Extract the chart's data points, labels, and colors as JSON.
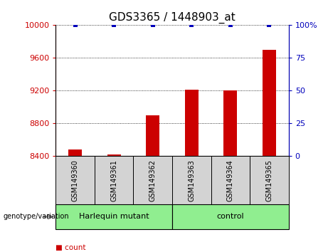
{
  "title": "GDS3365 / 1448903_at",
  "samples": [
    "GSM149360",
    "GSM149361",
    "GSM149362",
    "GSM149363",
    "GSM149364",
    "GSM149365"
  ],
  "counts": [
    8480,
    8425,
    8900,
    9215,
    9200,
    9700
  ],
  "percentiles": [
    100,
    100,
    100,
    100,
    100,
    100
  ],
  "ylim_left": [
    8400,
    10000
  ],
  "ylim_right": [
    0,
    100
  ],
  "yticks_left": [
    8400,
    8800,
    9200,
    9600,
    10000
  ],
  "yticks_right": [
    0,
    25,
    50,
    75,
    100
  ],
  "ytick_labels_right": [
    "0",
    "25",
    "50",
    "75",
    "100%"
  ],
  "groups": [
    {
      "label": "Harlequin mutant",
      "indices": [
        0,
        1,
        2
      ],
      "color": "#90EE90"
    },
    {
      "label": "control",
      "indices": [
        3,
        4,
        5
      ],
      "color": "#90EE90"
    }
  ],
  "bar_color": "#CC0000",
  "percentile_color": "#0000BB",
  "sample_box_color": "#D3D3D3",
  "left_tick_color": "#CC0000",
  "right_tick_color": "#0000BB",
  "bar_width": 0.35,
  "legend_count_color": "#CC0000",
  "legend_percentile_color": "#0000BB",
  "title_fontsize": 11,
  "tick_fontsize": 8,
  "sample_fontsize": 7,
  "group_fontsize": 8,
  "legend_fontsize": 7.5
}
